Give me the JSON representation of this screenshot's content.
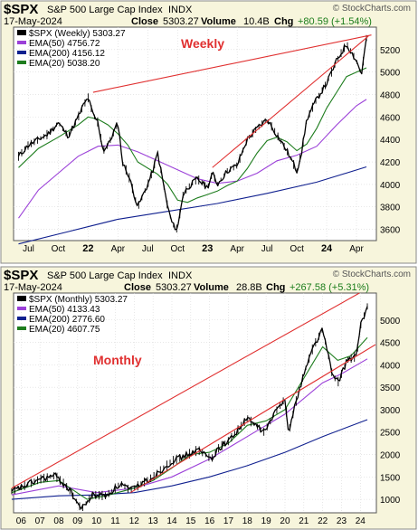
{
  "charts": [
    {
      "symbol": "$SPX",
      "name": "S&P 500 Large Cap Index",
      "exchange": "INDX",
      "date": "17-May-2024",
      "close_label": "Close",
      "close_value": "5303.27",
      "volume_label": "Volume",
      "volume_value": "10.4B",
      "chg_label": "Chg",
      "chg_value": "+80.59 (+1.54%)",
      "watermark": "© StockCharts.com",
      "annotation": "Weekly",
      "legend": [
        {
          "label": "$SPX (Weekly) 5303.27",
          "color": "#000000"
        },
        {
          "label": "EMA(50) 4756.72",
          "color": "#9b40d8"
        },
        {
          "label": "EMA(200) 4156.12",
          "color": "#10208f"
        },
        {
          "label": "EMA(20) 5038.20",
          "color": "#1e7d1e"
        }
      ],
      "y_ticks": [
        "3600",
        "3800",
        "4000",
        "4200",
        "4400",
        "4600",
        "4800",
        "5000",
        "5200"
      ],
      "x_ticks": [
        "Jul",
        "Oct",
        "22",
        "Apr",
        "Jul",
        "Oct",
        "23",
        "Apr",
        "Jul",
        "Oct",
        "24",
        "Apr"
      ],
      "bold_x_ticks": [
        "22",
        "23",
        "24"
      ]
    },
    {
      "symbol": "$SPX",
      "name": "S&P 500 Large Cap Index",
      "exchange": "INDX",
      "date": "17-May-2024",
      "close_label": "Close",
      "close_value": "5303.27",
      "volume_label": "Volume",
      "volume_value": "28.8B",
      "chg_label": "Chg",
      "chg_value": "+267.58 (+5.31%)",
      "watermark": "© StockCharts.com",
      "annotation": "Monthly",
      "legend": [
        {
          "label": "$SPX (Monthly) 5303.27",
          "color": "#000000"
        },
        {
          "label": "EMA(50) 4133.43",
          "color": "#9b40d8"
        },
        {
          "label": "EMA(200) 2776.60",
          "color": "#10208f"
        },
        {
          "label": "EMA(20) 4607.75",
          "color": "#1e7d1e"
        }
      ],
      "y_ticks": [
        "1000",
        "1500",
        "2000",
        "2500",
        "3000",
        "3500",
        "4000",
        "4500",
        "5000"
      ],
      "x_ticks": [
        "06",
        "07",
        "08",
        "09",
        "10",
        "11",
        "12",
        "13",
        "14",
        "15",
        "16",
        "17",
        "18",
        "19",
        "20",
        "21",
        "22",
        "23",
        "24"
      ],
      "bold_x_ticks": []
    }
  ],
  "chart_data": [
    {
      "type": "line",
      "title": "$SPX S&P 500 Large Cap Index INDX (Weekly)",
      "x_unit": "months since Jun 2021",
      "ylim": [
        3500,
        5400
      ],
      "series": [
        {
          "name": "$SPX (Weekly)",
          "color": "#000000",
          "x": [
            0,
            1,
            2,
            3,
            4,
            5,
            6,
            6.5,
            7,
            7.5,
            8,
            8.5,
            9,
            10,
            10.5,
            11,
            12,
            12.5,
            13,
            13.5,
            14,
            15,
            15.5,
            16,
            16.5,
            17,
            18,
            19,
            19.5,
            20,
            21,
            22,
            23,
            24,
            25,
            26,
            27,
            28,
            28.5,
            29,
            30,
            31,
            31.5,
            32,
            33,
            34,
            34.5,
            35
          ],
          "y": [
            4250,
            4350,
            4400,
            4450,
            4550,
            4430,
            4600,
            4700,
            4770,
            4620,
            4550,
            4300,
            4350,
            4550,
            4180,
            4100,
            3800,
            3900,
            4000,
            4120,
            4280,
            3800,
            3640,
            3600,
            3900,
            3970,
            4050,
            3970,
            4100,
            4000,
            4120,
            4170,
            4400,
            4500,
            4580,
            4440,
            4300,
            4120,
            4300,
            4580,
            4760,
            4900,
            5000,
            5100,
            5250,
            5100,
            4980,
            5303
          ]
        },
        {
          "name": "EMA(20)",
          "color": "#1e7d1e",
          "x": [
            0,
            2,
            4,
            6,
            7,
            8,
            9,
            10,
            11,
            12,
            14,
            15,
            16,
            17,
            18,
            19,
            20,
            21,
            22,
            23,
            24,
            25,
            26,
            27,
            28,
            29,
            30,
            31,
            32,
            33,
            34,
            35
          ],
          "y": [
            4150,
            4320,
            4420,
            4530,
            4600,
            4580,
            4530,
            4450,
            4350,
            4200,
            4090,
            4000,
            3860,
            3840,
            3880,
            3910,
            3940,
            3990,
            4030,
            4140,
            4280,
            4390,
            4420,
            4380,
            4300,
            4360,
            4500,
            4680,
            4820,
            4960,
            5000,
            5038
          ]
        },
        {
          "name": "EMA(50)",
          "color": "#9b40d8",
          "x": [
            0,
            2,
            4,
            6,
            8,
            10,
            12,
            14,
            16,
            18,
            20,
            22,
            24,
            26,
            28,
            30,
            32,
            34,
            35
          ],
          "y": [
            3700,
            3950,
            4100,
            4250,
            4340,
            4350,
            4290,
            4210,
            4130,
            4050,
            4010,
            4030,
            4100,
            4210,
            4260,
            4340,
            4530,
            4700,
            4757
          ]
        },
        {
          "name": "EMA(200)",
          "color": "#10208f",
          "x": [
            0,
            5,
            10,
            15,
            20,
            25,
            30,
            35
          ],
          "y": [
            3470,
            3580,
            3690,
            3760,
            3830,
            3920,
            4020,
            4156
          ]
        }
      ],
      "trendlines": [
        {
          "x": [
            7.5,
            35.5
          ],
          "y": [
            4820,
            5330
          ],
          "color": "#e03030"
        },
        {
          "x": [
            19.5,
            35.2
          ],
          "y": [
            4150,
            5320
          ],
          "color": "#e03030"
        }
      ]
    },
    {
      "type": "line",
      "title": "$SPX S&P 500 Large Cap Index INDX (Monthly)",
      "x_unit": "year",
      "ylim": [
        700,
        5600
      ],
      "series": [
        {
          "name": "$SPX (Monthly)",
          "color": "#000000",
          "x": [
            2005.5,
            2006,
            2007,
            2007.8,
            2008.5,
            2009.2,
            2009.8,
            2010.5,
            2011.3,
            2011.8,
            2012.5,
            2013,
            2014,
            2015.4,
            2016.1,
            2016.5,
            2017,
            2018,
            2018.9,
            2019.5,
            2020,
            2020.2,
            2020.6,
            2021,
            2021.5,
            2022,
            2022.5,
            2022.8,
            2023.3,
            2023.8,
            2024,
            2024.37
          ],
          "y": [
            1180,
            1270,
            1450,
            1530,
            1250,
            780,
            1100,
            1080,
            1350,
            1200,
            1380,
            1500,
            1850,
            2100,
            1900,
            2150,
            2300,
            2800,
            2500,
            2950,
            3250,
            2500,
            3200,
            3800,
            4400,
            4800,
            3800,
            3600,
            4100,
            4200,
            4850,
            5303
          ]
        },
        {
          "name": "EMA(20)",
          "color": "#1e7d1e",
          "x": [
            2005.5,
            2007,
            2008,
            2009.5,
            2010.5,
            2012,
            2013,
            2014,
            2015,
            2016,
            2017,
            2018,
            2019,
            2020,
            2021,
            2022,
            2022.8,
            2023.5,
            2024.37
          ],
          "y": [
            1150,
            1380,
            1420,
            1000,
            1080,
            1250,
            1420,
            1700,
            2000,
            2050,
            2250,
            2650,
            2750,
            3000,
            3700,
            4400,
            4100,
            4200,
            4608
          ]
        },
        {
          "name": "EMA(50)",
          "color": "#9b40d8",
          "x": [
            2005.5,
            2008,
            2010,
            2012,
            2014,
            2016,
            2018,
            2020,
            2022,
            2023,
            2024.37
          ],
          "y": [
            1100,
            1300,
            1150,
            1250,
            1500,
            1900,
            2400,
            2900,
            3600,
            3800,
            4133
          ]
        },
        {
          "name": "EMA(200)",
          "color": "#10208f",
          "x": [
            2005.5,
            2008,
            2010,
            2012,
            2014,
            2016,
            2018,
            2020,
            2022,
            2024.37
          ],
          "y": [
            1000,
            1080,
            1100,
            1150,
            1300,
            1500,
            1750,
            2050,
            2400,
            2777
          ]
        }
      ],
      "trendlines": [
        {
          "x": [
            2005.5,
            2024.8
          ],
          "y": [
            1250,
            5800
          ],
          "color": "#e03030"
        },
        {
          "x": [
            2011.8,
            2024.8
          ],
          "y": [
            1150,
            4450
          ],
          "color": "#e03030"
        }
      ]
    }
  ]
}
